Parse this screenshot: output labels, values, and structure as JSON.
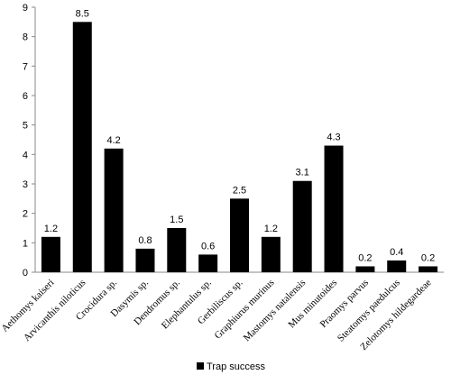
{
  "chart_data": {
    "type": "bar",
    "title": "",
    "xlabel": "",
    "ylabel": "",
    "ylim": [
      0,
      9
    ],
    "yticks": [
      "0",
      "1",
      "2",
      "3",
      "4",
      "5",
      "6",
      "7",
      "8",
      "9"
    ],
    "grid": false,
    "legend_position": "bottom",
    "categories": [
      "Aethomys kaiseri",
      "Arvicanthis niloticus",
      "Crocidura sp.",
      "Dasymis sp.",
      "Dendromus sp.",
      "Elephantulus sp.",
      "Gerbiliscus sp.",
      "Graphiurus murinus",
      "Mastomys natalensis",
      "Mus minutoides",
      "Praomys parvus",
      "Steatomys paedulcus",
      "Zelotomys hildegardeae"
    ],
    "series": [
      {
        "name": "Trap success",
        "color": "#000000",
        "values": [
          1.2,
          8.5,
          4.2,
          0.8,
          1.5,
          0.6,
          2.5,
          1.2,
          3.1,
          4.3,
          0.2,
          0.4,
          0.2
        ],
        "labels": [
          "1.2",
          "8.5",
          "4.2",
          "0.8",
          "1.5",
          "0.6",
          "2.5",
          "1.2",
          "3.1",
          "4.3",
          "0.2",
          "0.4",
          "0.2"
        ]
      }
    ]
  }
}
